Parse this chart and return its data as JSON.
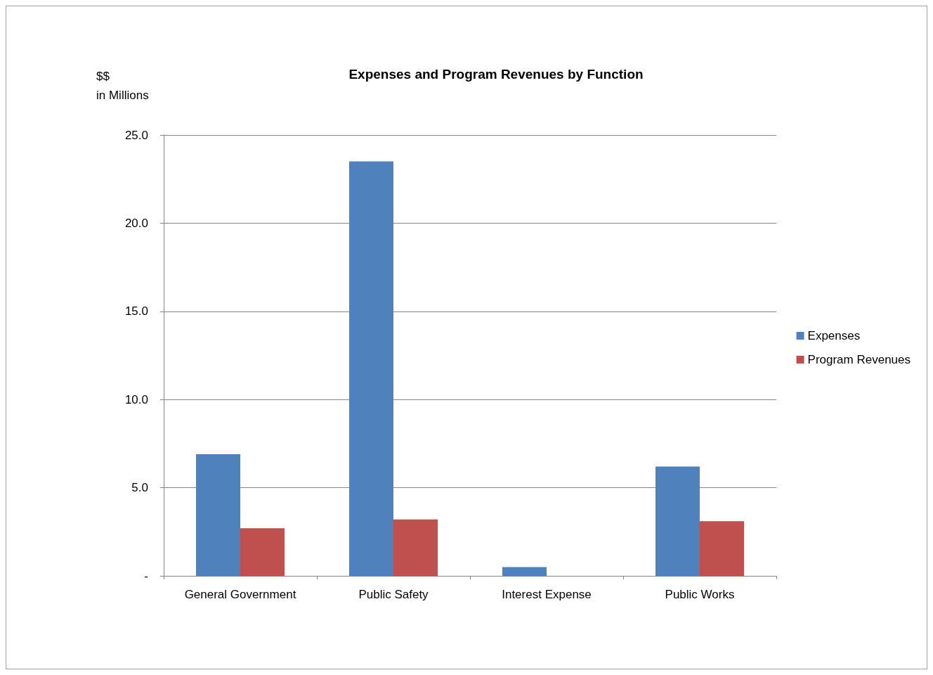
{
  "chart_data": {
    "type": "bar",
    "title": "Expenses and Program Revenues by Function",
    "ylabel": "$$\nin Millions",
    "categories": [
      "General Government",
      "Public Safety",
      "Interest Expense",
      "Public Works"
    ],
    "series": [
      {
        "name": "Expenses",
        "color": "#4f81bd",
        "values": [
          6.9,
          23.5,
          0.5,
          6.2
        ]
      },
      {
        "name": "Program Revenues",
        "color": "#c0504d",
        "values": [
          2.7,
          3.2,
          0,
          3.1
        ]
      }
    ],
    "ylim": [
      0,
      25
    ],
    "yticks": [
      {
        "value": 0,
        "label": "-"
      },
      {
        "value": 5,
        "label": "5.0"
      },
      {
        "value": 10,
        "label": "10.0"
      },
      {
        "value": 15,
        "label": "15.0"
      },
      {
        "value": 20,
        "label": "20.0"
      },
      {
        "value": 25,
        "label": "25.0"
      }
    ],
    "grid": "y",
    "legend": "right"
  }
}
